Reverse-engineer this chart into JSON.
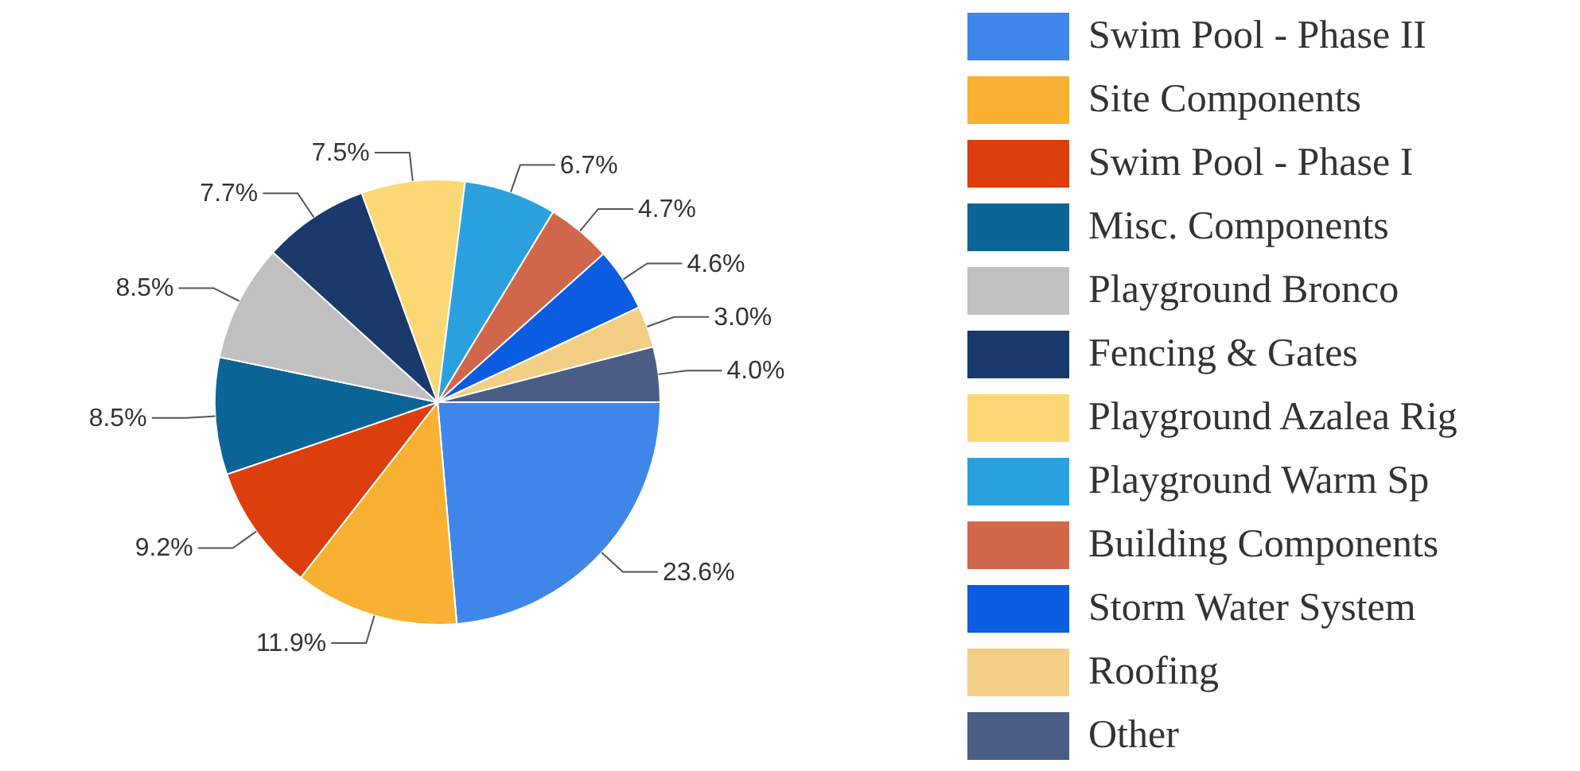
{
  "chart_data": {
    "type": "pie",
    "categories": [
      "Swim Pool - Phase II",
      "Site Components",
      "Swim Pool - Phase I",
      "Misc. Components",
      "Playground Bronco",
      "Fencing & Gates",
      "Playground Azalea Rig",
      "Playground Warm Sp",
      "Building Components",
      "Storm Water System",
      "Roofing",
      "Other"
    ],
    "values": [
      23.6,
      11.9,
      9.2,
      8.5,
      8.5,
      7.7,
      7.5,
      6.7,
      4.7,
      4.6,
      3.0,
      4.0
    ],
    "value_labels": [
      "23.6%",
      "11.9%",
      "9.2%",
      "8.5%",
      "8.5%",
      "7.7%",
      "7.5%",
      "6.7%",
      "4.7%",
      "4.6%",
      "3.0%",
      "4.0%"
    ],
    "colors": [
      "#3f86e8",
      "#f8b133",
      "#dc3f0d",
      "#0b6496",
      "#c0c0c0",
      "#1a3a6b",
      "#fbd875",
      "#2aa1de",
      "#d0674a",
      "#0b5ce0",
      "#f2cf85",
      "#4a5e85"
    ],
    "legend": "right"
  }
}
